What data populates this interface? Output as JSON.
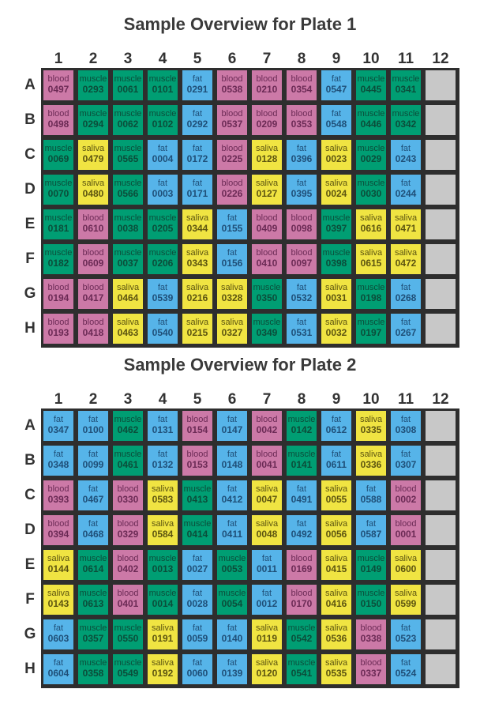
{
  "colors": {
    "blood": "#cc79a7",
    "muscle": "#009e73",
    "fat": "#56b4e9",
    "saliva": "#f0e442",
    "empty": "#c8c8c8",
    "blood_text": "#6b2a55",
    "muscle_text": "#0b4d3a",
    "fat_text": "#1f4f78",
    "saliva_text": "#5c5410"
  },
  "chart_data": [
    {
      "type": "table",
      "title": "Sample Overview for Plate 1",
      "columns": [
        "1",
        "2",
        "3",
        "4",
        "5",
        "6",
        "7",
        "8",
        "9",
        "10",
        "11",
        "12"
      ],
      "rows": [
        "A",
        "B",
        "C",
        "D",
        "E",
        "F",
        "G",
        "H"
      ],
      "wells": [
        [
          [
            "blood",
            "0497"
          ],
          [
            "muscle",
            "0293"
          ],
          [
            "muscle",
            "0061"
          ],
          [
            "muscle",
            "0101"
          ],
          [
            "fat",
            "0291"
          ],
          [
            "blood",
            "0538"
          ],
          [
            "blood",
            "0210"
          ],
          [
            "blood",
            "0354"
          ],
          [
            "fat",
            "0547"
          ],
          [
            "muscle",
            "0445"
          ],
          [
            "muscle",
            "0341"
          ],
          null
        ],
        [
          [
            "blood",
            "0498"
          ],
          [
            "muscle",
            "0294"
          ],
          [
            "muscle",
            "0062"
          ],
          [
            "muscle",
            "0102"
          ],
          [
            "fat",
            "0292"
          ],
          [
            "blood",
            "0537"
          ],
          [
            "blood",
            "0209"
          ],
          [
            "blood",
            "0353"
          ],
          [
            "fat",
            "0548"
          ],
          [
            "muscle",
            "0446"
          ],
          [
            "muscle",
            "0342"
          ],
          null
        ],
        [
          [
            "muscle",
            "0069"
          ],
          [
            "saliva",
            "0479"
          ],
          [
            "muscle",
            "0565"
          ],
          [
            "fat",
            "0004"
          ],
          [
            "fat",
            "0172"
          ],
          [
            "blood",
            "0225"
          ],
          [
            "saliva",
            "0128"
          ],
          [
            "fat",
            "0396"
          ],
          [
            "saliva",
            "0023"
          ],
          [
            "muscle",
            "0029"
          ],
          [
            "fat",
            "0243"
          ],
          null
        ],
        [
          [
            "muscle",
            "0070"
          ],
          [
            "saliva",
            "0480"
          ],
          [
            "muscle",
            "0566"
          ],
          [
            "fat",
            "0003"
          ],
          [
            "fat",
            "0171"
          ],
          [
            "blood",
            "0226"
          ],
          [
            "saliva",
            "0127"
          ],
          [
            "fat",
            "0395"
          ],
          [
            "saliva",
            "0024"
          ],
          [
            "muscle",
            "0030"
          ],
          [
            "fat",
            "0244"
          ],
          null
        ],
        [
          [
            "muscle",
            "0181"
          ],
          [
            "blood",
            "0610"
          ],
          [
            "muscle",
            "0038"
          ],
          [
            "muscle",
            "0205"
          ],
          [
            "saliva",
            "0344"
          ],
          [
            "fat",
            "0155"
          ],
          [
            "blood",
            "0409"
          ],
          [
            "blood",
            "0098"
          ],
          [
            "muscle",
            "0397"
          ],
          [
            "saliva",
            "0616"
          ],
          [
            "saliva",
            "0471"
          ],
          null
        ],
        [
          [
            "muscle",
            "0182"
          ],
          [
            "blood",
            "0609"
          ],
          [
            "muscle",
            "0037"
          ],
          [
            "muscle",
            "0206"
          ],
          [
            "saliva",
            "0343"
          ],
          [
            "fat",
            "0156"
          ],
          [
            "blood",
            "0410"
          ],
          [
            "blood",
            "0097"
          ],
          [
            "muscle",
            "0398"
          ],
          [
            "saliva",
            "0615"
          ],
          [
            "saliva",
            "0472"
          ],
          null
        ],
        [
          [
            "blood",
            "0194"
          ],
          [
            "blood",
            "0417"
          ],
          [
            "saliva",
            "0464"
          ],
          [
            "fat",
            "0539"
          ],
          [
            "saliva",
            "0216"
          ],
          [
            "saliva",
            "0328"
          ],
          [
            "muscle",
            "0350"
          ],
          [
            "fat",
            "0532"
          ],
          [
            "saliva",
            "0031"
          ],
          [
            "muscle",
            "0198"
          ],
          [
            "fat",
            "0268"
          ],
          null
        ],
        [
          [
            "blood",
            "0193"
          ],
          [
            "blood",
            "0418"
          ],
          [
            "saliva",
            "0463"
          ],
          [
            "fat",
            "0540"
          ],
          [
            "saliva",
            "0215"
          ],
          [
            "saliva",
            "0327"
          ],
          [
            "muscle",
            "0349"
          ],
          [
            "fat",
            "0531"
          ],
          [
            "saliva",
            "0032"
          ],
          [
            "muscle",
            "0197"
          ],
          [
            "fat",
            "0267"
          ],
          null
        ]
      ]
    },
    {
      "type": "table",
      "title": "Sample Overview for Plate 2",
      "columns": [
        "1",
        "2",
        "3",
        "4",
        "5",
        "6",
        "7",
        "8",
        "9",
        "10",
        "11",
        "12"
      ],
      "rows": [
        "A",
        "B",
        "C",
        "D",
        "E",
        "F",
        "G",
        "H"
      ],
      "wells": [
        [
          [
            "fat",
            "0347"
          ],
          [
            "fat",
            "0100"
          ],
          [
            "muscle",
            "0462"
          ],
          [
            "fat",
            "0131"
          ],
          [
            "blood",
            "0154"
          ],
          [
            "fat",
            "0147"
          ],
          [
            "blood",
            "0042"
          ],
          [
            "muscle",
            "0142"
          ],
          [
            "fat",
            "0612"
          ],
          [
            "saliva",
            "0335"
          ],
          [
            "fat",
            "0308"
          ],
          null
        ],
        [
          [
            "fat",
            "0348"
          ],
          [
            "fat",
            "0099"
          ],
          [
            "muscle",
            "0461"
          ],
          [
            "fat",
            "0132"
          ],
          [
            "blood",
            "0153"
          ],
          [
            "fat",
            "0148"
          ],
          [
            "blood",
            "0041"
          ],
          [
            "muscle",
            "0141"
          ],
          [
            "fat",
            "0611"
          ],
          [
            "saliva",
            "0336"
          ],
          [
            "fat",
            "0307"
          ],
          null
        ],
        [
          [
            "blood",
            "0393"
          ],
          [
            "fat",
            "0467"
          ],
          [
            "blood",
            "0330"
          ],
          [
            "saliva",
            "0583"
          ],
          [
            "muscle",
            "0413"
          ],
          [
            "fat",
            "0412"
          ],
          [
            "saliva",
            "0047"
          ],
          [
            "fat",
            "0491"
          ],
          [
            "saliva",
            "0055"
          ],
          [
            "fat",
            "0588"
          ],
          [
            "blood",
            "0002"
          ],
          null
        ],
        [
          [
            "blood",
            "0394"
          ],
          [
            "fat",
            "0468"
          ],
          [
            "blood",
            "0329"
          ],
          [
            "saliva",
            "0584"
          ],
          [
            "muscle",
            "0414"
          ],
          [
            "fat",
            "0411"
          ],
          [
            "saliva",
            "0048"
          ],
          [
            "fat",
            "0492"
          ],
          [
            "saliva",
            "0056"
          ],
          [
            "fat",
            "0587"
          ],
          [
            "blood",
            "0001"
          ],
          null
        ],
        [
          [
            "saliva",
            "0144"
          ],
          [
            "muscle",
            "0614"
          ],
          [
            "blood",
            "0402"
          ],
          [
            "muscle",
            "0013"
          ],
          [
            "fat",
            "0027"
          ],
          [
            "muscle",
            "0053"
          ],
          [
            "fat",
            "0011"
          ],
          [
            "blood",
            "0169"
          ],
          [
            "saliva",
            "0415"
          ],
          [
            "muscle",
            "0149"
          ],
          [
            "saliva",
            "0600"
          ],
          null
        ],
        [
          [
            "saliva",
            "0143"
          ],
          [
            "muscle",
            "0613"
          ],
          [
            "blood",
            "0401"
          ],
          [
            "muscle",
            "0014"
          ],
          [
            "fat",
            "0028"
          ],
          [
            "muscle",
            "0054"
          ],
          [
            "fat",
            "0012"
          ],
          [
            "blood",
            "0170"
          ],
          [
            "saliva",
            "0416"
          ],
          [
            "muscle",
            "0150"
          ],
          [
            "saliva",
            "0599"
          ],
          null
        ],
        [
          [
            "fat",
            "0603"
          ],
          [
            "muscle",
            "0357"
          ],
          [
            "muscle",
            "0550"
          ],
          [
            "saliva",
            "0191"
          ],
          [
            "fat",
            "0059"
          ],
          [
            "fat",
            "0140"
          ],
          [
            "saliva",
            "0119"
          ],
          [
            "muscle",
            "0542"
          ],
          [
            "saliva",
            "0536"
          ],
          [
            "blood",
            "0338"
          ],
          [
            "fat",
            "0523"
          ],
          null
        ],
        [
          [
            "fat",
            "0604"
          ],
          [
            "muscle",
            "0358"
          ],
          [
            "muscle",
            "0549"
          ],
          [
            "saliva",
            "0192"
          ],
          [
            "fat",
            "0060"
          ],
          [
            "fat",
            "0139"
          ],
          [
            "saliva",
            "0120"
          ],
          [
            "muscle",
            "0541"
          ],
          [
            "saliva",
            "0535"
          ],
          [
            "blood",
            "0337"
          ],
          [
            "fat",
            "0524"
          ],
          null
        ]
      ]
    }
  ]
}
